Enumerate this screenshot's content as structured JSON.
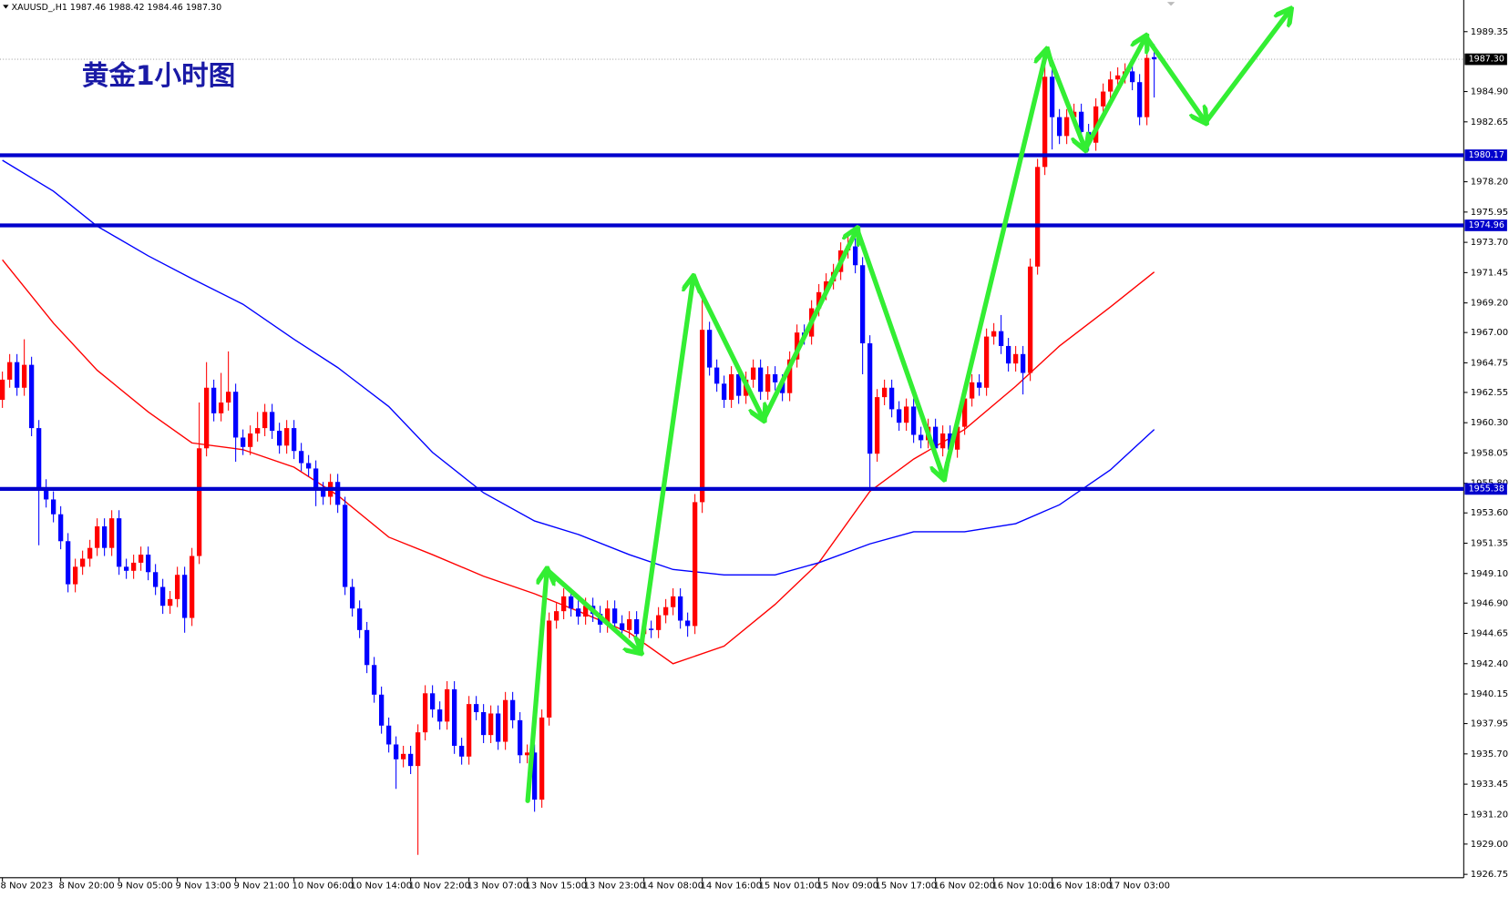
{
  "header": "XAUUSD_,H1  1987.46 1988.42 1984.46 1987.30",
  "chart_data": {
    "type": "candlestick",
    "title": "黄金1小时图",
    "up_color": "#ff0000",
    "down_color": "#0000ff",
    "ylim": [
      1926.5,
      1991.7
    ],
    "yticks": [
      1989.35,
      {
        "value": 1984.9,
        "label": "1984.90"
      },
      1982.65,
      {
        "value": 1978.2,
        "label": "1978.20"
      },
      1975.95,
      {
        "value": 1973.7,
        "label": "1973.70"
      },
      1971.45,
      {
        "value": 1969.2,
        "label": "1969.20"
      },
      {
        "value": 1967,
        "label": "1967.00"
      },
      1964.75,
      1962.55,
      {
        "value": 1960.3,
        "label": "1960.30"
      },
      1958.05,
      {
        "value": 1955.8,
        "label": "1955.80"
      },
      {
        "value": 1953.6,
        "label": "1953.60"
      },
      1951.35,
      {
        "value": 1949.1,
        "label": "1949.10"
      },
      {
        "value": 1946.9,
        "label": "1946.90"
      },
      1944.65,
      {
        "value": 1942.4,
        "label": "1942.40"
      },
      1940.15,
      1937.95,
      {
        "value": 1935.7,
        "label": "1935.70"
      },
      1933.45,
      {
        "value": 1931.2,
        "label": "1931.20"
      },
      {
        "value": 1929,
        "label": "1929.00"
      },
      1926.75
    ],
    "levels": [
      1980.17,
      1974.96,
      1955.38
    ],
    "level_color": "#0000cc",
    "last_price": {
      "value": 1987.3,
      "label": "1987.30"
    },
    "categories": [
      "8 Nov 2023",
      null,
      null,
      null,
      null,
      null,
      null,
      null,
      "8 Nov 20:00",
      null,
      null,
      null,
      null,
      null,
      null,
      null,
      "9 Nov 05:00",
      null,
      null,
      null,
      null,
      null,
      null,
      null,
      "9 Nov 13:00",
      null,
      null,
      null,
      null,
      null,
      null,
      null,
      "9 Nov 21:00",
      null,
      null,
      null,
      null,
      null,
      null,
      null,
      "10 Nov 06:00",
      null,
      null,
      null,
      null,
      null,
      null,
      null,
      "10 Nov 14:00",
      null,
      null,
      null,
      null,
      null,
      null,
      null,
      "10 Nov 22:00",
      null,
      null,
      null,
      null,
      null,
      null,
      null,
      "13 Nov 07:00",
      null,
      null,
      null,
      null,
      null,
      null,
      null,
      "13 Nov 15:00",
      null,
      null,
      null,
      null,
      null,
      null,
      null,
      "13 Nov 23:00",
      null,
      null,
      null,
      null,
      null,
      null,
      null,
      "14 Nov 08:00",
      null,
      null,
      null,
      null,
      null,
      null,
      null,
      "14 Nov 16:00",
      null,
      null,
      null,
      null,
      null,
      null,
      null,
      "15 Nov 01:00",
      null,
      null,
      null,
      null,
      null,
      null,
      null,
      "15 Nov 09:00",
      null,
      null,
      null,
      null,
      null,
      null,
      null,
      "15 Nov 17:00",
      null,
      null,
      null,
      null,
      null,
      null,
      null,
      "16 Nov 02:00",
      null,
      null,
      null,
      null,
      null,
      null,
      null,
      "16 Nov 10:00",
      null,
      null,
      null,
      null,
      null,
      null,
      null,
      "16 Nov 18:00",
      null,
      null,
      null,
      null,
      null,
      null,
      null,
      "17 Nov 03:00",
      null,
      null,
      null,
      null,
      null,
      null
    ],
    "open": [
      1962.0,
      1963.5,
      1964.8,
      1962.9,
      1964.6,
      1959.9,
      1955.5,
      1954.6,
      1953.5,
      1951.5,
      1948.3,
      1949.6,
      1950.2,
      1951.0,
      1952.6,
      1951.0,
      1953.2,
      1949.6,
      1949.3,
      1949.9,
      1950.5,
      1949.2,
      1948.1,
      1946.7,
      1947.2,
      1949.0,
      1945.8,
      1950.4,
      1958.4,
      1962.9,
      1961.0,
      1961.8,
      1962.6,
      1959.2,
      1958.5,
      1959.5,
      1959.9,
      1961.1,
      1959.7,
      1958.6,
      1959.9,
      1958.2,
      1957.3,
      1956.9,
      1955.3,
      1954.8,
      1955.9,
      1954.2,
      1948.1,
      1946.5,
      1944.9,
      1942.3,
      1940.1,
      1937.8,
      1936.4,
      1935.3,
      1935.7,
      1934.8,
      1937.3,
      1940.2,
      1939.0,
      1938.1,
      1940.5,
      1936.3,
      1935.5,
      1939.4,
      1938.8,
      1937.1,
      1938.7,
      1936.6,
      1939.7,
      1938.2,
      1935.6,
      1935.8,
      1932.3,
      1938.4,
      1945.6,
      1946.3,
      1947.4,
      1946.5,
      1945.9,
      1946.7,
      1946.1,
      1945.3,
      1946.5,
      1945.4,
      1944.9,
      1945.7,
      1944.6,
      1945.0,
      1944.9,
      1946.0,
      1946.6,
      1947.4,
      1945.6,
      1945.2,
      1954.4,
      1967.2,
      1964.4,
      1963.2,
      1962.0,
      1963.9,
      1962.3,
      1963.5,
      1964.4,
      1962.6,
      1963.9,
      1963.3,
      1962.5,
      1965.0,
      1967.0,
      1966.7,
      1968.8,
      1970.0,
      1970.8,
      1971.5,
      1973.1,
      1973.4,
      1972.0,
      1966.2,
      1958.0,
      1962.2,
      1962.9,
      1961.3,
      1960.3,
      1961.5,
      1959.4,
      1959.0,
      1960.0,
      1958.4,
      1959.5,
      1958.3,
      1960.0,
      1962.1,
      1963.3,
      1962.9,
      1966.7,
      1967.1,
      1966.0,
      1964.7,
      1965.4,
      1964.0,
      1971.9,
      1979.3,
      1986.0,
      1983.0,
      1981.6,
      1983.0,
      1983.4,
      1981.9,
      1981.1,
      1983.8,
      1984.9,
      1985.8,
      1986.1,
      1986.4,
      1985.6,
      1983.0,
      1987.46
    ],
    "high": [
      1964.1,
      1965.4,
      1965.4,
      1966.5,
      1965.2,
      1960.5,
      1956.1,
      1955.2,
      1954.1,
      1952.1,
      1950.2,
      1950.8,
      1951.6,
      1953.2,
      1953.2,
      1953.8,
      1953.8,
      1950.2,
      1950.5,
      1951.1,
      1951.1,
      1949.8,
      1948.7,
      1947.8,
      1949.6,
      1949.6,
      1951.0,
      1961.8,
      1964.8,
      1963.5,
      1964.0,
      1965.6,
      1963.2,
      1959.8,
      1960.1,
      1961.1,
      1961.7,
      1961.7,
      1960.3,
      1960.5,
      1960.5,
      1958.8,
      1957.9,
      1957.5,
      1955.9,
      1956.5,
      1956.5,
      1954.8,
      1948.7,
      1947.1,
      1945.5,
      1942.9,
      1940.7,
      1938.4,
      1937.0,
      1936.3,
      1936.3,
      1937.9,
      1940.8,
      1940.8,
      1939.6,
      1941.1,
      1941.1,
      1936.9,
      1940.0,
      1940.0,
      1939.4,
      1939.3,
      1939.3,
      1940.3,
      1940.3,
      1938.8,
      1936.4,
      1936.4,
      1939.0,
      1946.2,
      1946.9,
      1948.0,
      1948.0,
      1947.1,
      1947.3,
      1947.3,
      1946.7,
      1947.1,
      1947.1,
      1946.0,
      1946.3,
      1946.3,
      1945.6,
      1945.6,
      1946.6,
      1947.2,
      1948.0,
      1948.0,
      1946.2,
      1955.0,
      1969.5,
      1967.8,
      1965.0,
      1963.8,
      1964.5,
      1964.5,
      1964.1,
      1965.0,
      1965.0,
      1964.5,
      1964.5,
      1963.9,
      1965.6,
      1967.6,
      1967.6,
      1969.4,
      1970.6,
      1971.4,
      1972.1,
      1973.7,
      1974.2,
      1974.0,
      1972.6,
      1966.8,
      1962.8,
      1963.5,
      1963.5,
      1961.9,
      1962.1,
      1962.1,
      1960.0,
      1960.6,
      1960.6,
      1960.1,
      1960.1,
      1960.6,
      1962.7,
      1963.9,
      1963.9,
      1967.3,
      1967.7,
      1968.3,
      1966.6,
      1966.0,
      1966.0,
      1972.5,
      1979.9,
      1986.8,
      1986.6,
      1983.6,
      1983.6,
      1984.0,
      1984.0,
      1982.5,
      1984.4,
      1985.5,
      1986.4,
      1986.7,
      1987.0,
      1987.0,
      1986.2,
      1988.0,
      1988.42
    ],
    "low": [
      1961.4,
      1962.9,
      1962.3,
      1962.3,
      1959.3,
      1951.2,
      1954.0,
      1952.9,
      1950.9,
      1947.7,
      1947.7,
      1949.0,
      1949.6,
      1950.4,
      1950.4,
      1950.4,
      1949.0,
      1948.7,
      1948.7,
      1949.3,
      1948.6,
      1947.5,
      1946.1,
      1946.1,
      1946.6,
      1944.7,
      1945.2,
      1949.8,
      1957.8,
      1960.4,
      1960.4,
      1961.2,
      1957.4,
      1957.9,
      1957.9,
      1958.9,
      1959.3,
      1959.1,
      1958.0,
      1958.0,
      1957.6,
      1956.7,
      1956.3,
      1954.1,
      1954.2,
      1954.2,
      1953.6,
      1947.5,
      1945.9,
      1944.3,
      1941.7,
      1939.5,
      1937.2,
      1935.8,
      1933.1,
      1934.7,
      1934.2,
      1928.2,
      1936.7,
      1938.4,
      1937.5,
      1937.5,
      1935.7,
      1934.9,
      1934.9,
      1938.2,
      1936.5,
      1936.5,
      1936.0,
      1936.0,
      1937.6,
      1935.0,
      1935.0,
      1931.4,
      1931.7,
      1937.8,
      1945.0,
      1945.7,
      1945.9,
      1945.3,
      1945.3,
      1945.5,
      1944.7,
      1944.7,
      1944.8,
      1944.3,
      1944.3,
      1944.0,
      1944.0,
      1944.3,
      1944.3,
      1945.4,
      1946.0,
      1945.0,
      1944.4,
      1944.6,
      1953.6,
      1963.8,
      1962.6,
      1961.4,
      1961.4,
      1961.7,
      1961.7,
      1962.9,
      1962.0,
      1962.0,
      1962.7,
      1961.9,
      1961.9,
      1964.4,
      1966.1,
      1966.1,
      1968.2,
      1969.4,
      1970.2,
      1970.9,
      1972.5,
      1971.4,
      1963.9,
      1955.4,
      1957.4,
      1961.6,
      1960.7,
      1959.7,
      1959.7,
      1958.8,
      1958.4,
      1958.4,
      1957.8,
      1957.8,
      1957.7,
      1957.7,
      1959.4,
      1961.5,
      1962.3,
      1962.3,
      1966.1,
      1965.4,
      1964.1,
      1964.1,
      1962.4,
      1963.4,
      1971.3,
      1978.7,
      1980.6,
      1981.0,
      1981.0,
      1982.4,
      1981.3,
      1980.5,
      1980.5,
      1983.2,
      1984.3,
      1985.2,
      1985.5,
      1985.0,
      1982.4,
      1982.4,
      1984.46
    ],
    "close": [
      1963.5,
      1964.8,
      1962.9,
      1964.6,
      1959.9,
      1955.5,
      1954.6,
      1953.5,
      1951.5,
      1948.3,
      1949.6,
      1950.2,
      1951.0,
      1952.6,
      1951.0,
      1953.2,
      1949.6,
      1949.3,
      1949.9,
      1950.5,
      1949.2,
      1948.1,
      1946.7,
      1947.2,
      1949.0,
      1945.8,
      1950.4,
      1958.4,
      1962.9,
      1961.0,
      1961.8,
      1962.6,
      1959.2,
      1958.5,
      1959.5,
      1959.9,
      1961.1,
      1959.7,
      1958.6,
      1959.9,
      1958.2,
      1957.3,
      1956.9,
      1955.3,
      1954.8,
      1955.9,
      1954.2,
      1948.1,
      1946.5,
      1944.9,
      1942.3,
      1940.1,
      1937.8,
      1936.4,
      1935.3,
      1935.7,
      1934.8,
      1937.3,
      1940.2,
      1939.0,
      1938.1,
      1940.5,
      1936.3,
      1935.5,
      1939.4,
      1938.8,
      1937.1,
      1938.7,
      1936.6,
      1939.7,
      1938.2,
      1935.6,
      1935.8,
      1932.3,
      1938.4,
      1945.6,
      1946.3,
      1947.4,
      1946.5,
      1945.9,
      1946.7,
      1946.1,
      1945.3,
      1946.5,
      1945.4,
      1944.9,
      1945.7,
      1944.6,
      1945.0,
      1944.9,
      1946.0,
      1946.6,
      1947.4,
      1945.6,
      1945.2,
      1954.4,
      1967.2,
      1964.4,
      1963.2,
      1962.0,
      1963.9,
      1962.3,
      1963.5,
      1964.4,
      1962.6,
      1963.9,
      1963.3,
      1962.5,
      1965.0,
      1967.0,
      1966.7,
      1968.8,
      1970.0,
      1970.8,
      1971.5,
      1973.1,
      1973.4,
      1972.0,
      1966.2,
      1958.0,
      1962.2,
      1962.9,
      1961.3,
      1960.3,
      1961.5,
      1959.4,
      1959.0,
      1960.0,
      1958.4,
      1959.5,
      1958.3,
      1960.0,
      1962.1,
      1963.3,
      1962.9,
      1966.7,
      1967.1,
      1966.0,
      1964.7,
      1965.4,
      1964.0,
      1971.9,
      1979.3,
      1986.0,
      1983.0,
      1981.6,
      1983.0,
      1983.4,
      1981.9,
      1981.1,
      1983.8,
      1984.9,
      1985.8,
      1986.1,
      1986.4,
      1985.6,
      1983.0,
      1987.4,
      1987.3
    ],
    "lines": [
      {
        "color": "#ff0000",
        "x": [
          0,
          7,
          13,
          20,
          26,
          33,
          40,
          46,
          53,
          59,
          66,
          73,
          79,
          86,
          92,
          99,
          106,
          112,
          119,
          125,
          132,
          139,
          145,
          152,
          158
        ],
        "values": [
          1972.4,
          1967.7,
          1964.2,
          1961.1,
          1958.8,
          1958.3,
          1957.0,
          1954.9,
          1951.8,
          1950.5,
          1948.9,
          1947.6,
          1946.3,
          1944.7,
          1942.4,
          1943.7,
          1946.8,
          1949.9,
          1955.2,
          1957.6,
          1959.8,
          1963.0,
          1966.0,
          1968.9,
          1971.5
        ]
      },
      {
        "color": "#0000ff",
        "x": [
          0,
          7,
          13,
          20,
          26,
          33,
          40,
          46,
          53,
          59,
          66,
          73,
          79,
          86,
          92,
          99,
          106,
          112,
          119,
          125,
          132,
          139,
          145,
          152,
          158
        ],
        "values": [
          1979.8,
          1977.5,
          1974.9,
          1972.7,
          1971.0,
          1969.1,
          1966.5,
          1964.4,
          1961.5,
          1958.1,
          1955.1,
          1953.0,
          1952.0,
          1950.5,
          1949.4,
          1949.0,
          1949.0,
          1949.9,
          1951.3,
          1952.2,
          1952.2,
          1952.8,
          1954.2,
          1956.8,
          1959.8
        ]
      }
    ]
  }
}
